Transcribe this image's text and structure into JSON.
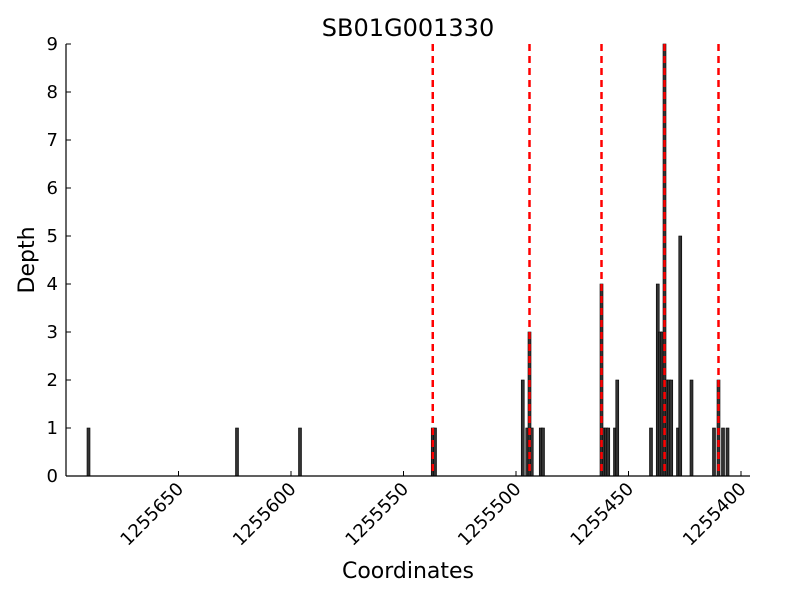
{
  "chart_data": {
    "type": "bar",
    "title": "SB01G001330",
    "xlabel": "Coordinates",
    "ylabel": "Depth",
    "xlim": [
      1255700,
      1255396
    ],
    "x_reversed": true,
    "ylim": [
      0,
      9
    ],
    "grid": false,
    "x_tick_values": [
      1255650,
      1255600,
      1255550,
      1255500,
      1255450,
      1255400
    ],
    "x_tick_labels": [
      "1255650",
      "1255600",
      "1255550",
      "1255500",
      "1255450",
      "1255400"
    ],
    "y_tick_values": [
      0,
      1,
      2,
      3,
      4,
      5,
      6,
      7,
      8,
      9
    ],
    "y_tick_labels": [
      "0",
      "1",
      "2",
      "3",
      "4",
      "5",
      "6",
      "7",
      "8",
      "9"
    ],
    "bar_color": "#333333",
    "marker_color": "#ff0000",
    "bars": [
      {
        "x": 1255690,
        "depth": 1
      },
      {
        "x": 1255624,
        "depth": 1
      },
      {
        "x": 1255596,
        "depth": 1
      },
      {
        "x": 1255537,
        "depth": 1
      },
      {
        "x": 1255536,
        "depth": 1
      },
      {
        "x": 1255497,
        "depth": 2
      },
      {
        "x": 1255495,
        "depth": 1
      },
      {
        "x": 1255494,
        "depth": 3
      },
      {
        "x": 1255493,
        "depth": 1
      },
      {
        "x": 1255489,
        "depth": 1
      },
      {
        "x": 1255488,
        "depth": 1
      },
      {
        "x": 1255462,
        "depth": 4
      },
      {
        "x": 1255461,
        "depth": 1
      },
      {
        "x": 1255460,
        "depth": 1
      },
      {
        "x": 1255459,
        "depth": 1
      },
      {
        "x": 1255456,
        "depth": 1
      },
      {
        "x": 1255455,
        "depth": 2
      },
      {
        "x": 1255440,
        "depth": 1
      },
      {
        "x": 1255437,
        "depth": 4
      },
      {
        "x": 1255436,
        "depth": 3
      },
      {
        "x": 1255435,
        "depth": 3
      },
      {
        "x": 1255434,
        "depth": 9
      },
      {
        "x": 1255433,
        "depth": 2
      },
      {
        "x": 1255432,
        "depth": 2
      },
      {
        "x": 1255431,
        "depth": 2
      },
      {
        "x": 1255428,
        "depth": 1
      },
      {
        "x": 1255427,
        "depth": 5
      },
      {
        "x": 1255422,
        "depth": 2
      },
      {
        "x": 1255412,
        "depth": 1
      },
      {
        "x": 1255410,
        "depth": 2
      },
      {
        "x": 1255408,
        "depth": 1
      },
      {
        "x": 1255406,
        "depth": 1
      }
    ],
    "markers": [
      1255537,
      1255494,
      1255462,
      1255434,
      1255410
    ]
  }
}
